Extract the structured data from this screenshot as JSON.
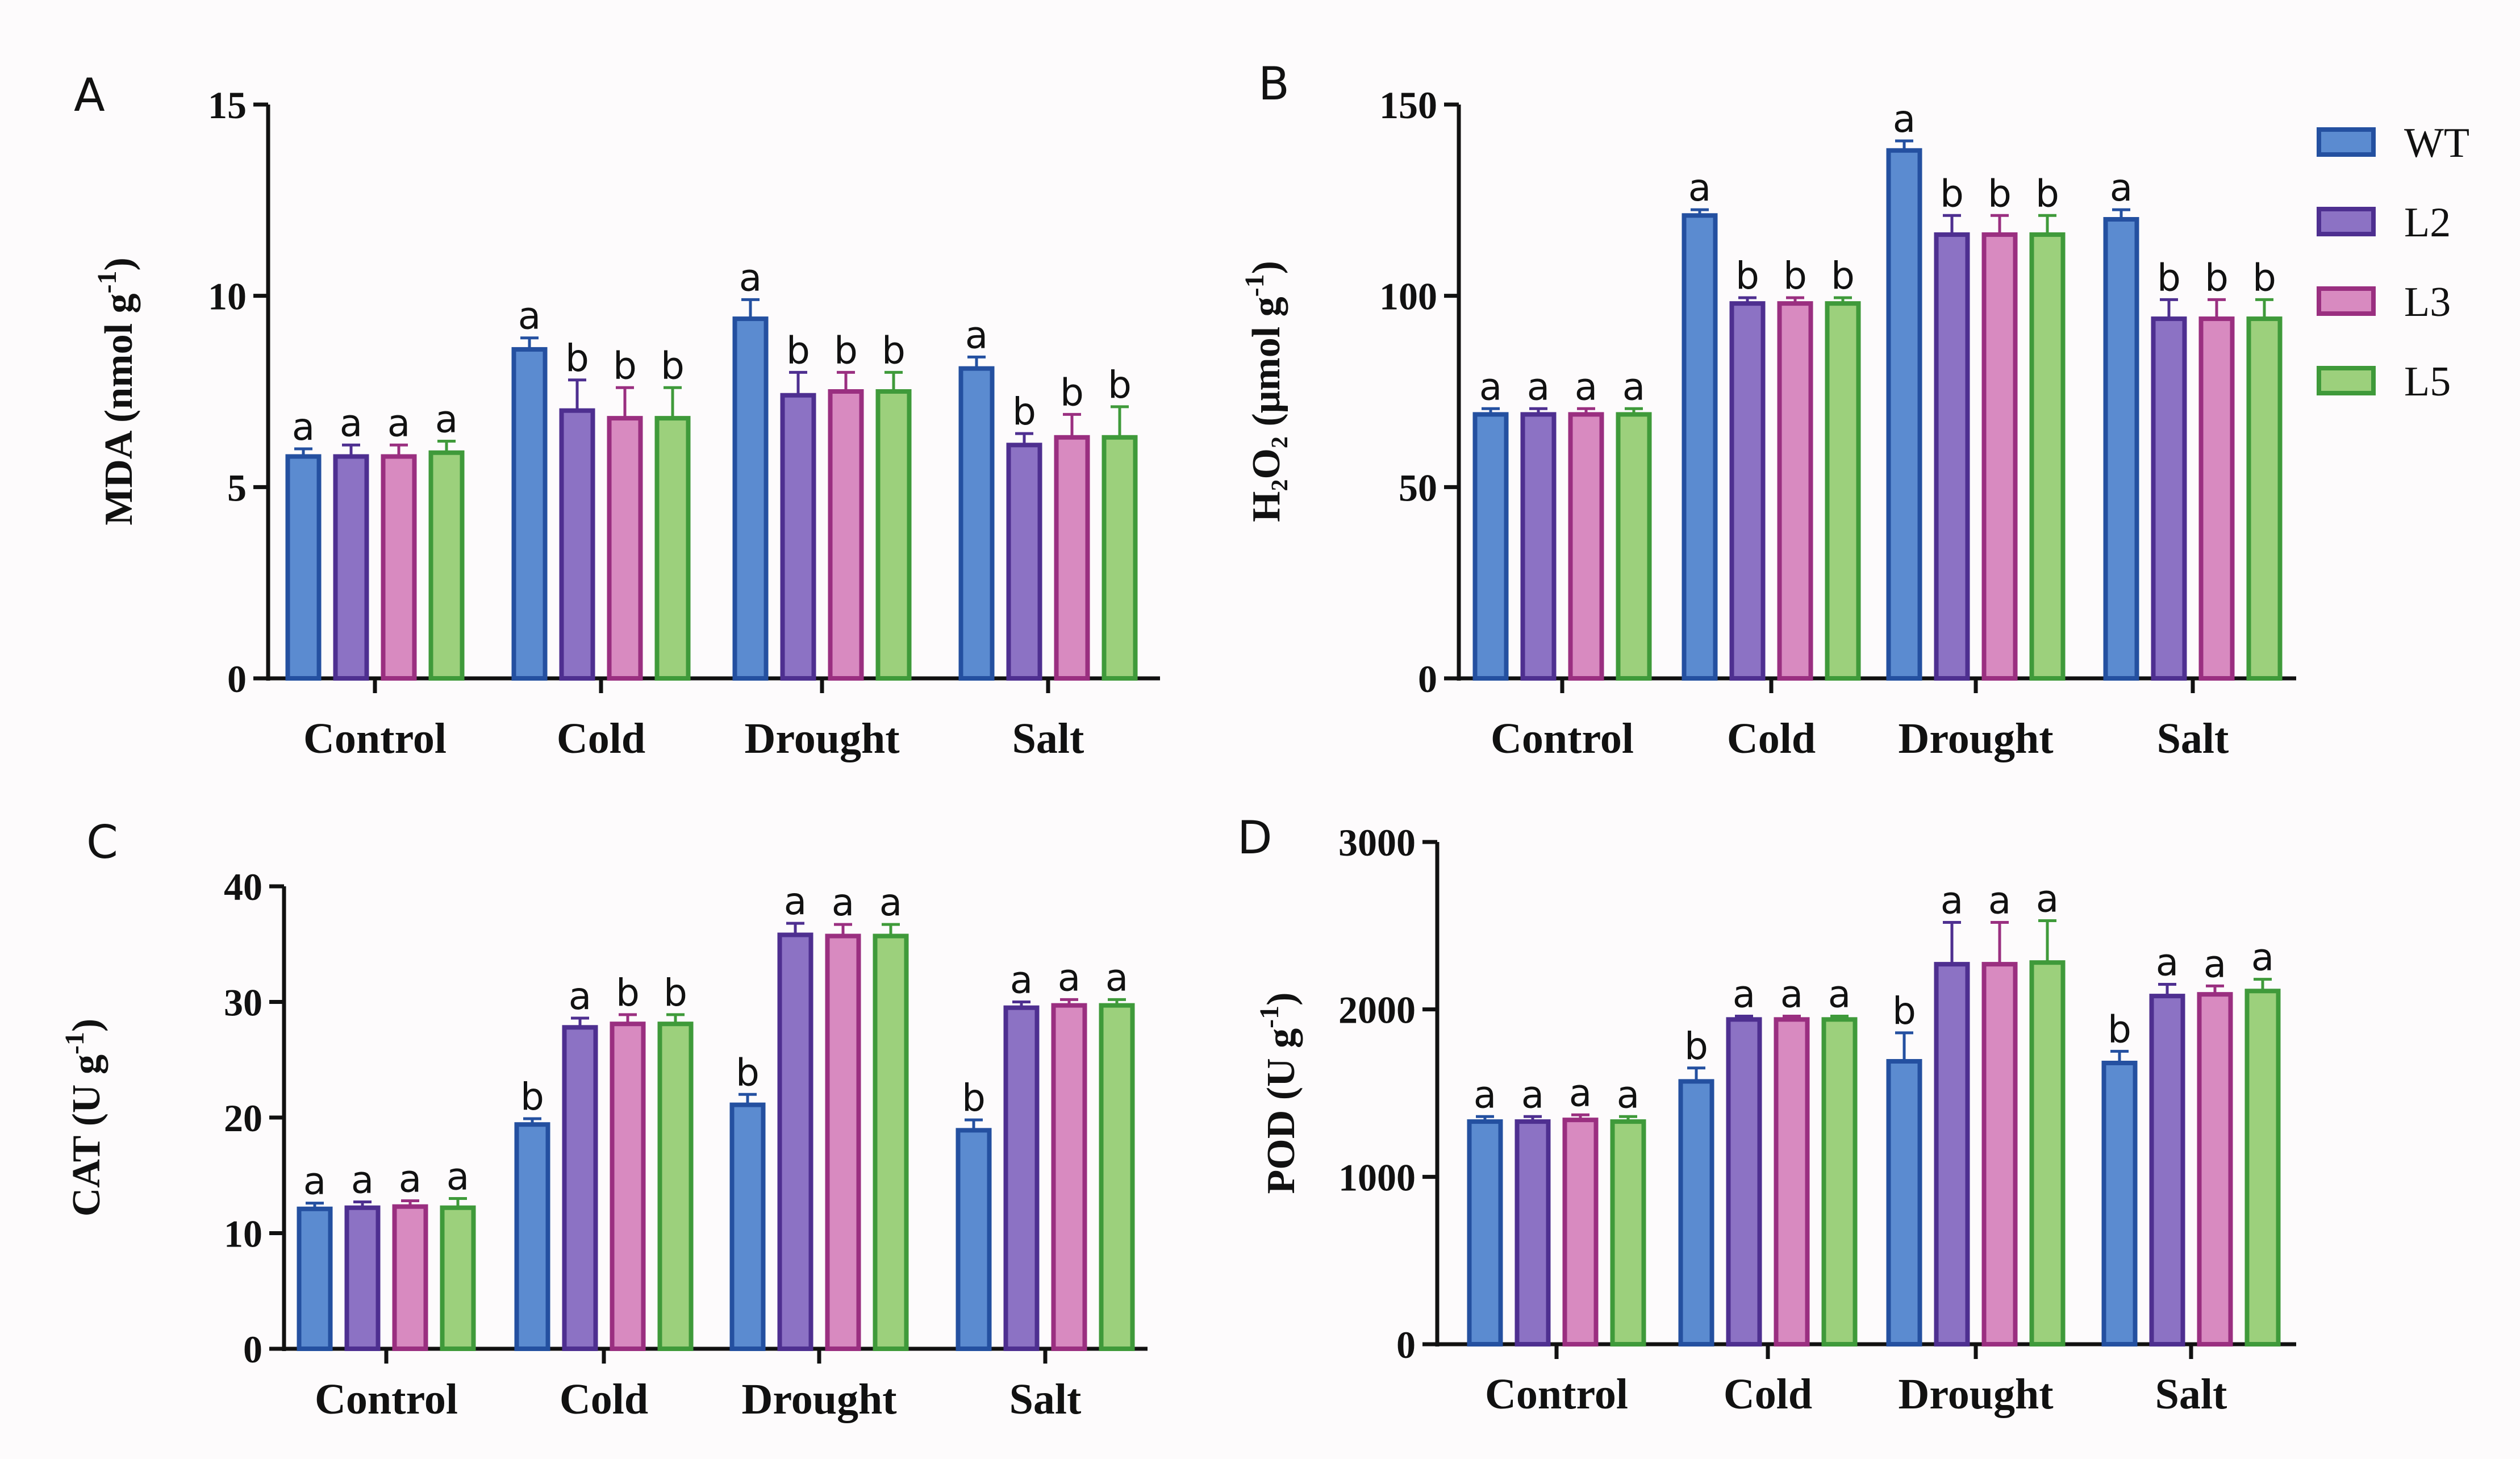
{
  "colors": {
    "WT": {
      "fill": "#5b8bd0",
      "stroke": "#2450a0"
    },
    "L2": {
      "fill": "#8c72c4",
      "stroke": "#4e2f90"
    },
    "L3": {
      "fill": "#d88ac0",
      "stroke": "#9a2f80"
    },
    "L5": {
      "fill": "#9cd07c",
      "stroke": "#3f9a3a"
    }
  },
  "legend": [
    "WT",
    "L2",
    "L3",
    "L5"
  ],
  "chart_data": [
    {
      "type": "bar",
      "panel": "A",
      "ylabel_main": "MDA (nmol g",
      "ylabel_sup": "-1",
      "ylabel_end": ")",
      "ylim": [
        0,
        15
      ],
      "yticks": [
        "0",
        "5",
        "10",
        "15"
      ],
      "categories": [
        "Control",
        "Cold",
        "Drought",
        "Salt"
      ],
      "series": [
        {
          "name": "WT",
          "values": [
            5.8,
            8.6,
            9.4,
            8.1
          ],
          "errors": [
            0.2,
            0.3,
            0.5,
            0.3
          ],
          "sig": [
            "a",
            "a",
            "a",
            "a"
          ]
        },
        {
          "name": "L2",
          "values": [
            5.8,
            7.0,
            7.4,
            6.1
          ],
          "errors": [
            0.3,
            0.8,
            0.6,
            0.3
          ],
          "sig": [
            "a",
            "b",
            "b",
            "b"
          ]
        },
        {
          "name": "L3",
          "values": [
            5.8,
            6.8,
            7.5,
            6.3
          ],
          "errors": [
            0.3,
            0.8,
            0.5,
            0.6
          ],
          "sig": [
            "a",
            "b",
            "b",
            "b"
          ]
        },
        {
          "name": "L5",
          "values": [
            5.9,
            6.8,
            7.5,
            6.3
          ],
          "errors": [
            0.3,
            0.8,
            0.5,
            0.8
          ],
          "sig": [
            "a",
            "b",
            "b",
            "b"
          ]
        }
      ]
    },
    {
      "type": "bar",
      "panel": "B",
      "ylabel_main": "H₂O₂ (μmol g",
      "ylabel_sup": "-1",
      "ylabel_end": ")",
      "ylim": [
        0,
        150
      ],
      "yticks": [
        "0",
        "50",
        "100",
        "150"
      ],
      "categories": [
        "Control",
        "Cold",
        "Drought",
        "Salt"
      ],
      "series": [
        {
          "name": "WT",
          "values": [
            69,
            121,
            138,
            120
          ],
          "errors": [
            1.5,
            1.5,
            2.5,
            2.5
          ],
          "sig": [
            "a",
            "a",
            "a",
            "a"
          ]
        },
        {
          "name": "L2",
          "values": [
            69,
            98,
            116,
            94
          ],
          "errors": [
            1.5,
            1.5,
            5,
            5
          ],
          "sig": [
            "a",
            "b",
            "b",
            "b"
          ]
        },
        {
          "name": "L3",
          "values": [
            69,
            98,
            116,
            94
          ],
          "errors": [
            1.5,
            1.5,
            5,
            5
          ],
          "sig": [
            "a",
            "b",
            "b",
            "b"
          ]
        },
        {
          "name": "L5",
          "values": [
            69,
            98,
            116,
            94
          ],
          "errors": [
            1.5,
            1.5,
            5,
            5
          ],
          "sig": [
            "a",
            "b",
            "b",
            "b"
          ]
        }
      ]
    },
    {
      "type": "bar",
      "panel": "C",
      "ylabel_main": "CAT (U g",
      "ylabel_sup": "-1",
      "ylabel_end": ")",
      "ylim": [
        0,
        40
      ],
      "yticks": [
        "0",
        "10",
        "20",
        "30",
        "40"
      ],
      "categories": [
        "Control",
        "Cold",
        "Drought",
        "Salt"
      ],
      "series": [
        {
          "name": "WT",
          "values": [
            12.1,
            19.4,
            21.1,
            18.9
          ],
          "errors": [
            0.5,
            0.5,
            0.9,
            0.9
          ],
          "sig": [
            "a",
            "b",
            "b",
            "b"
          ]
        },
        {
          "name": "L2",
          "values": [
            12.2,
            27.8,
            35.8,
            29.5
          ],
          "errors": [
            0.5,
            0.8,
            1.0,
            0.5
          ],
          "sig": [
            "a",
            "a",
            "a",
            "a"
          ]
        },
        {
          "name": "L3",
          "values": [
            12.3,
            28.1,
            35.7,
            29.7
          ],
          "errors": [
            0.5,
            0.8,
            1.0,
            0.5
          ],
          "sig": [
            "a",
            "b",
            "a",
            "a"
          ]
        },
        {
          "name": "L5",
          "values": [
            12.2,
            28.1,
            35.7,
            29.7
          ],
          "errors": [
            0.8,
            0.8,
            1.0,
            0.5
          ],
          "sig": [
            "a",
            "b",
            "a",
            "a"
          ]
        }
      ]
    },
    {
      "type": "bar",
      "panel": "D",
      "ylabel_main": "POD (U g",
      "ylabel_sup": "-1",
      "ylabel_end": ")",
      "ylim": [
        0,
        3000
      ],
      "yticks": [
        "0",
        "1000",
        "2000",
        "3000"
      ],
      "categories": [
        "Control",
        "Cold",
        "Drought",
        "Salt"
      ],
      "series": [
        {
          "name": "WT",
          "values": [
            1330,
            1570,
            1690,
            1680
          ],
          "errors": [
            30,
            80,
            170,
            70
          ],
          "sig": [
            "a",
            "b",
            "b",
            "b"
          ]
        },
        {
          "name": "L2",
          "values": [
            1330,
            1940,
            2270,
            2080
          ],
          "errors": [
            30,
            20,
            250,
            70
          ],
          "sig": [
            "a",
            "a",
            "a",
            "a"
          ]
        },
        {
          "name": "L3",
          "values": [
            1340,
            1940,
            2270,
            2090
          ],
          "errors": [
            30,
            20,
            250,
            50
          ],
          "sig": [
            "a",
            "a",
            "a",
            "a"
          ]
        },
        {
          "name": "L5",
          "values": [
            1330,
            1940,
            2280,
            2110
          ],
          "errors": [
            30,
            20,
            250,
            70
          ],
          "sig": [
            "a",
            "a",
            "a",
            "a"
          ]
        }
      ]
    }
  ]
}
